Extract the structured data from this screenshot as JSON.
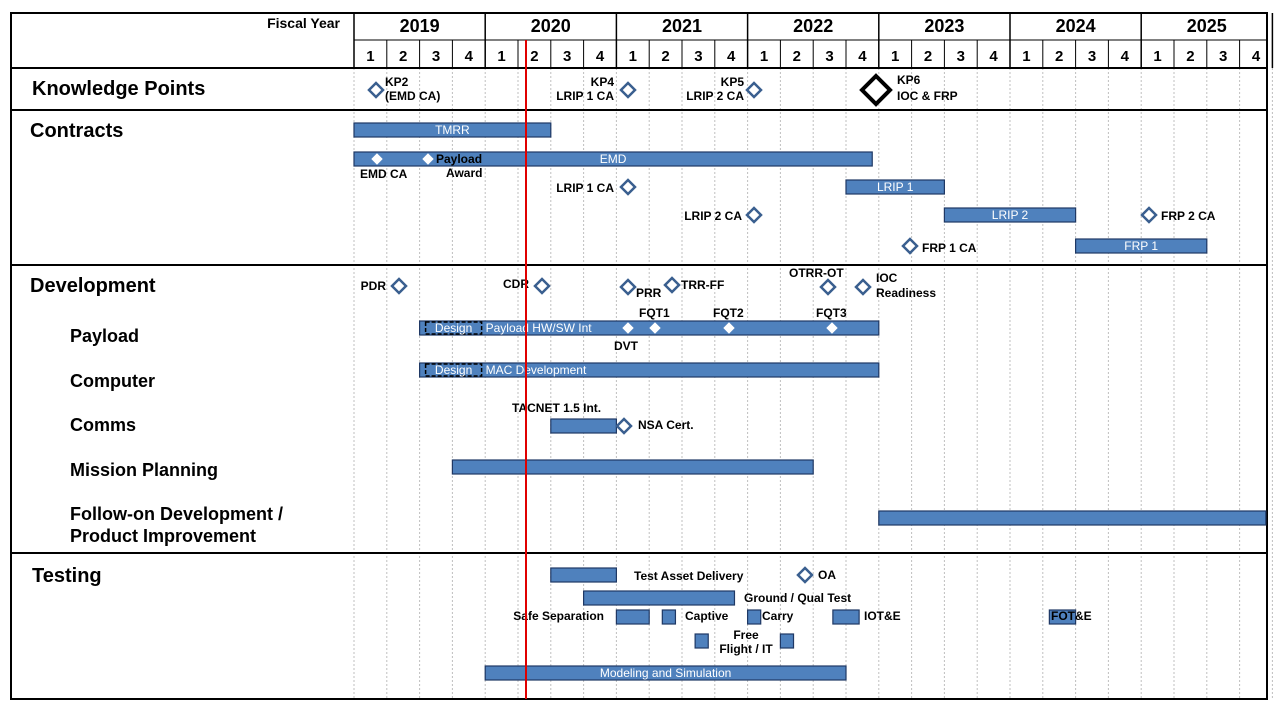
{
  "header": {
    "fiscal_year_label": "Fiscal Year",
    "years": [
      "2019",
      "2020",
      "2021",
      "2022",
      "2023",
      "2024",
      "2025"
    ],
    "quarters": [
      "1",
      "2",
      "3",
      "4"
    ]
  },
  "sections": [
    {
      "id": "kp",
      "label": "Knowledge Points"
    },
    {
      "id": "contracts",
      "label": "Contracts"
    },
    {
      "id": "development",
      "label": "Development"
    },
    {
      "id": "testing",
      "label": "Testing"
    }
  ],
  "dev_rows": [
    {
      "label": "Payload"
    },
    {
      "label": "Computer"
    },
    {
      "label": "Comms"
    },
    {
      "label": "Mission Planning"
    },
    {
      "label": "Follow-on Development /",
      "label2": "Product Improvement"
    }
  ],
  "colors": {
    "bar_fill": "#4f81bd",
    "bar_stroke": "#1f3864",
    "milestone": "#3a5f8f",
    "today_line": "#e00000",
    "grid": "#bfbfbf"
  },
  "chart_data": {
    "type": "gantt",
    "title": "",
    "x_axis": "Fiscal Year / Quarter",
    "x_range": [
      "2019 Q1",
      "2025 Q4"
    ],
    "today_marker": "2020 Q1.8",
    "bars": [
      {
        "row": "contracts-1",
        "start": 2019.0,
        "end": 2020.5,
        "label": "TMRR"
      },
      {
        "row": "contracts-2",
        "start": 2019.0,
        "end": 2022.95,
        "label": "EMD"
      },
      {
        "row": "contracts-3",
        "start": 2022.75,
        "end": 2023.5,
        "label": "LRIP 1"
      },
      {
        "row": "contracts-4",
        "start": 2023.5,
        "end": 2024.5,
        "label": "LRIP 2"
      },
      {
        "row": "contracts-5",
        "start": 2024.5,
        "end": 2025.5,
        "label": "FRP 1"
      },
      {
        "row": "payload",
        "start": 2019.5,
        "end": 2023.0,
        "label": "Payload HW/SW Int",
        "prefix": "Design"
      },
      {
        "row": "computer",
        "start": 2019.5,
        "end": 2023.0,
        "label": "MAC Development",
        "prefix": "Design"
      },
      {
        "row": "comms",
        "start": 2020.5,
        "end": 2021.0,
        "label": "",
        "note": "TACNET 1.5 Int."
      },
      {
        "row": "mission-planning",
        "start": 2019.75,
        "end": 2022.5,
        "label": ""
      },
      {
        "row": "follow-on",
        "start": 2023.0,
        "end": 2025.95,
        "label": ""
      },
      {
        "row": "testing-1",
        "start": 2020.5,
        "end": 2021.0,
        "label": "",
        "note": "Test Asset Delivery"
      },
      {
        "row": "testing-2",
        "start": 2020.75,
        "end": 2021.9,
        "label": "",
        "note": "Ground / Qual Test"
      },
      {
        "row": "testing-3",
        "start": 2021.0,
        "end": 2021.25,
        "label": "",
        "note": "Safe Separation"
      },
      {
        "row": "testing-3",
        "start": 2021.35,
        "end": 2021.45,
        "label": "",
        "note": "Captive"
      },
      {
        "row": "testing-3",
        "start": 2022.0,
        "end": 2022.1,
        "label": "",
        "note": "Carry"
      },
      {
        "row": "testing-3",
        "start": 2022.65,
        "end": 2022.85,
        "label": "",
        "note": "IOT&E"
      },
      {
        "row": "testing-3",
        "start": 2024.3,
        "end": 2024.5,
        "label": "",
        "note": "FOT&E"
      },
      {
        "row": "testing-4",
        "start": 2021.6,
        "end": 2021.7,
        "label": "",
        "note": "Free Flight / IT"
      },
      {
        "row": "testing-4",
        "start": 2022.25,
        "end": 2022.35,
        "label": ""
      },
      {
        "row": "testing-5",
        "start": 2020.0,
        "end": 2022.75,
        "label": "Modeling and Simulation"
      }
    ],
    "milestones": [
      {
        "row": "kp",
        "at": 2019.05,
        "label": "KP2",
        "label2": "(EMD CA)"
      },
      {
        "row": "kp",
        "at": 2021.0,
        "label": "KP4",
        "label2": "LRIP 1 CA"
      },
      {
        "row": "kp",
        "at": 2022.0,
        "label": "KP5",
        "label2": "LRIP 2 CA"
      },
      {
        "row": "kp",
        "at": 2023.0,
        "label": "KP6",
        "label2": "IOC & FRP",
        "large": true
      },
      {
        "row": "contracts-2",
        "at": 2019.1,
        "label": "EMD CA"
      },
      {
        "row": "contracts-2",
        "at": 2019.5,
        "label": "Payload",
        "label2": "Award"
      },
      {
        "row": "contracts-3",
        "at": 2021.0,
        "label": "LRIP 1 CA"
      },
      {
        "row": "contracts-4",
        "at": 2022.0,
        "label": "LRIP 2 CA"
      },
      {
        "row": "contracts-4",
        "at": 2025.1,
        "label": "FRP 2 CA"
      },
      {
        "row": "contracts-5",
        "at": 2023.25,
        "label": "FRP 1 CA"
      },
      {
        "row": "development",
        "at": 2019.3,
        "label": "PDR"
      },
      {
        "row": "development",
        "at": 2020.5,
        "label": "CDR"
      },
      {
        "row": "development",
        "at": 2021.0,
        "label": "PRR"
      },
      {
        "row": "development",
        "at": 2021.35,
        "label": "TRR-FF"
      },
      {
        "row": "development",
        "at": 2022.5,
        "label": "OTRR-OT"
      },
      {
        "row": "development",
        "at": 2022.9,
        "label": "IOC",
        "label2": "Readiness"
      },
      {
        "row": "payload",
        "at": 2021.0,
        "label": "DVT"
      },
      {
        "row": "payload",
        "at": 2021.2,
        "label": "FQT1"
      },
      {
        "row": "payload",
        "at": 2021.75,
        "label": "FQT2"
      },
      {
        "row": "payload",
        "at": 2022.5,
        "label": "FQT3"
      },
      {
        "row": "comms",
        "at": 2021.0,
        "label": "NSA Cert."
      },
      {
        "row": "testing-1",
        "at": 2022.4,
        "label": "OA"
      }
    ]
  }
}
